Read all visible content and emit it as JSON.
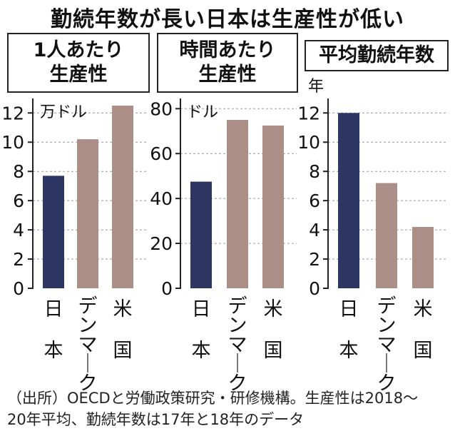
{
  "title": "勤続年数が長い日本は生産性が低い",
  "source_note": {
    "line1": "（出所）OECDと労働政策研究・研修機構。生産性は2018〜",
    "line2": "20年平均、勤続年数は17年と18年のデータ"
  },
  "colors": {
    "japan": "#2e3663",
    "other": "#ab8e86",
    "grid": "#999999"
  },
  "chart_data": [
    {
      "type": "bar",
      "title_lines": [
        "1人あたり",
        "生産性"
      ],
      "unit": "万ドル",
      "categories": [
        "日本",
        "デンマーク",
        "米国"
      ],
      "values": [
        7.7,
        10.2,
        12.5
      ],
      "yticks": [
        "0",
        "2",
        "4",
        "6",
        "8",
        "10",
        "12"
      ],
      "ylim": [
        0,
        12.6
      ],
      "grid": true
    },
    {
      "type": "bar",
      "title_lines": [
        "時間あたり",
        "生産性"
      ],
      "unit": "ドル",
      "categories": [
        "日本",
        "デンマーク",
        "米国"
      ],
      "values": [
        47.5,
        75,
        72.5
      ],
      "yticks": [
        "0",
        "20",
        "40",
        "60",
        "80"
      ],
      "ylim": [
        0,
        82
      ],
      "grid": true
    },
    {
      "type": "bar",
      "title_lines": [
        "平均勤続年数"
      ],
      "unit": "年",
      "categories": [
        "日本",
        "デンマーク",
        "米国"
      ],
      "values": [
        12,
        7.2,
        4.2
      ],
      "yticks": [
        "0",
        "2",
        "4",
        "6",
        "8",
        "10",
        "12"
      ],
      "ylim": [
        0,
        12.6
      ],
      "grid": true
    }
  ]
}
